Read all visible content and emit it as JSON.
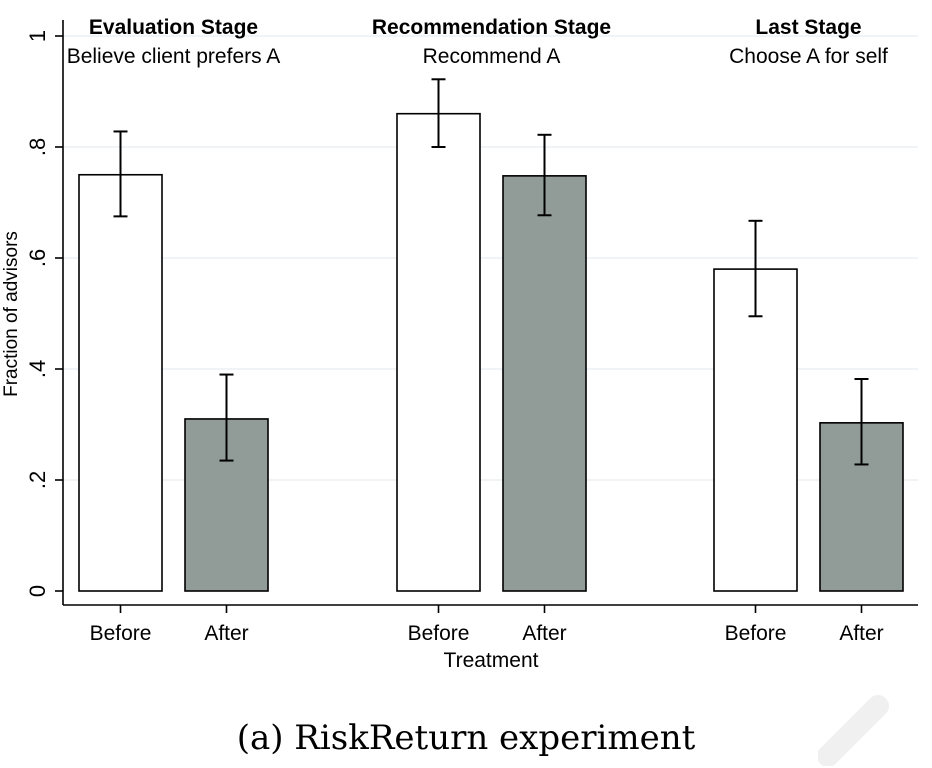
{
  "chart_data": {
    "type": "bar",
    "ylabel": "Fraction of advisors",
    "xlabel": "Treatment",
    "ylim": [
      0,
      1
    ],
    "yticks": [
      0,
      0.2,
      0.4,
      0.6,
      0.8,
      1
    ],
    "ytick_labels": [
      "0",
      ".2",
      ".4",
      ".6",
      ".8",
      "1"
    ],
    "grid": true,
    "colors": {
      "Before": "#ffffff",
      "After": "#919c99"
    },
    "panels": [
      {
        "title": "Evaluation Stage",
        "subtitle": "Believe client prefers A",
        "categories": [
          "Before",
          "After"
        ],
        "values": [
          0.75,
          0.31
        ],
        "ci_low": [
          0.675,
          0.235
        ],
        "ci_high": [
          0.828,
          0.39
        ]
      },
      {
        "title": "Recommendation Stage",
        "subtitle": "Recommend A",
        "categories": [
          "Before",
          "After"
        ],
        "values": [
          0.86,
          0.748
        ],
        "ci_low": [
          0.8,
          0.677
        ],
        "ci_high": [
          0.922,
          0.822
        ]
      },
      {
        "title": "Last Stage",
        "subtitle": "Choose A for self",
        "categories": [
          "Before",
          "After"
        ],
        "values": [
          0.58,
          0.303
        ],
        "ci_low": [
          0.495,
          0.228
        ],
        "ci_high": [
          0.667,
          0.382
        ]
      }
    ]
  },
  "caption": "(a) RiskReturn experiment"
}
